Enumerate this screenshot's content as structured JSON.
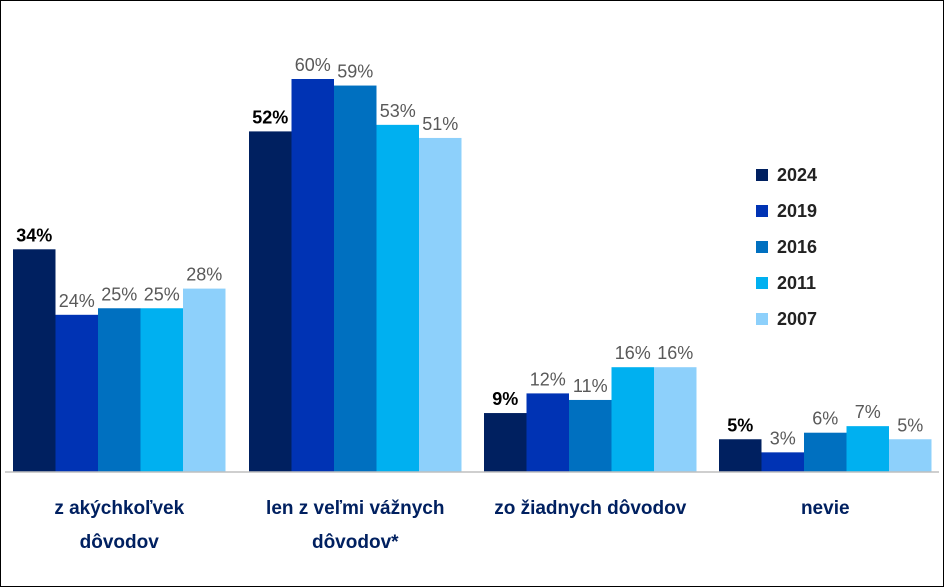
{
  "chart_data": {
    "type": "bar",
    "categories": [
      [
        "z akýchkoľvek",
        "dôvodov"
      ],
      [
        "len z veľmi vážnych",
        "dôvodov*"
      ],
      [
        "zo žiadnych dôvodov"
      ],
      [
        "nevie"
      ]
    ],
    "series": [
      {
        "name": "2024",
        "color": "#002060",
        "values": [
          34,
          52,
          9,
          5
        ],
        "labels": [
          "34%",
          "52%",
          "9%",
          "5%"
        ]
      },
      {
        "name": "2019",
        "color": "#0033B4",
        "values": [
          24,
          60,
          12,
          3
        ],
        "labels": [
          "24%",
          "60%",
          "12%",
          "3%"
        ]
      },
      {
        "name": "2016",
        "color": "#0070C0",
        "values": [
          25,
          59,
          11,
          6
        ],
        "labels": [
          "25%",
          "59%",
          "11%",
          "6%"
        ]
      },
      {
        "name": "2011",
        "color": "#00B0F0",
        "values": [
          25,
          53,
          16,
          7
        ],
        "labels": [
          "25%",
          "53%",
          "16%",
          "7%"
        ]
      },
      {
        "name": "2007",
        "color": "#8DD0FB",
        "values": [
          28,
          51,
          16,
          5
        ],
        "labels": [
          "28%",
          "51%",
          "16%",
          "5%"
        ]
      }
    ],
    "ylim": [
      0,
      60
    ],
    "legend_position": "right",
    "grid": false
  }
}
